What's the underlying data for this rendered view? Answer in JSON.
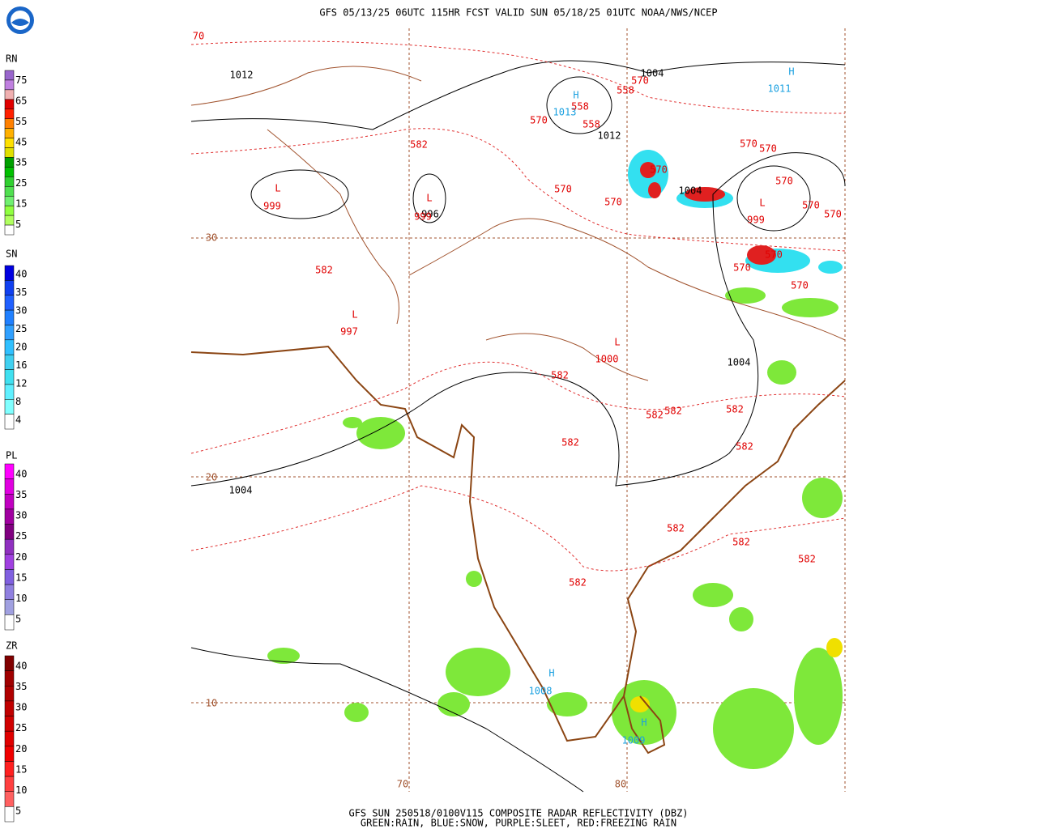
{
  "header": {
    "title": "GFS 05/13/25 06UTC 115HR FCST VALID SUN 05/18/25 01UTC NOAA/NWS/NCEP"
  },
  "footer": {
    "line1": "GFS SUN 250518/0100V115 COMPOSITE RADAR REFLECTIVITY (DBZ)",
    "line2": "GREEN:RAIN, BLUE:SNOW, PURPLE:SLEET, RED:FREEZING RAIN"
  },
  "legend": [
    {
      "title": "RN",
      "levels": [
        "75",
        "65",
        "55",
        "45",
        "35",
        "25",
        "15",
        "5"
      ],
      "colors": [
        "#9966cc",
        "#c080e0",
        "#f0b0b0",
        "#e00000",
        "#ff2000",
        "#ff8000",
        "#ffb000",
        "#ffe000",
        "#e0e000",
        "#00a000",
        "#00c000",
        "#30d030",
        "#50e050",
        "#70f070",
        "#90ff40",
        "#b0ff60",
        "#ffffff"
      ]
    },
    {
      "title": "SN",
      "levels": [
        "40",
        "35",
        "30",
        "25",
        "20",
        "16",
        "12",
        "8",
        "4"
      ],
      "colors": [
        "#0000e0",
        "#1040f0",
        "#2060ff",
        "#2080ff",
        "#30a0ff",
        "#30c0ff",
        "#40d0f0",
        "#40e0f0",
        "#60f0ff",
        "#80ffff",
        "#ffffff"
      ]
    },
    {
      "title": "PL",
      "levels": [
        "40",
        "35",
        "30",
        "25",
        "20",
        "15",
        "10",
        "5"
      ],
      "colors": [
        "#ff00ff",
        "#e000e0",
        "#c000c0",
        "#a000a0",
        "#800080",
        "#9030c0",
        "#a040e0",
        "#8060e0",
        "#9080e0",
        "#a0a0e0",
        "#ffffff"
      ]
    },
    {
      "title": "ZR",
      "levels": [
        "40",
        "35",
        "30",
        "25",
        "20",
        "15",
        "10",
        "5"
      ],
      "colors": [
        "#800000",
        "#a00000",
        "#b00000",
        "#c00000",
        "#d00000",
        "#e00000",
        "#f00000",
        "#ff2020",
        "#ff4040",
        "#ff6060",
        "#ffffff"
      ]
    }
  ],
  "map": {
    "pressure_black": [
      "1012",
      "1004",
      "1012",
      "1004",
      "996",
      "1004",
      "1004"
    ],
    "pressure_red": [
      "999",
      "999",
      "997",
      "1000",
      "999"
    ],
    "pressure_blue": [
      "1011",
      "1013",
      "1008",
      "1009"
    ],
    "low_symbol": "L",
    "high_symbol": "H",
    "heights": [
      "70",
      "558",
      "570",
      "558",
      "570",
      "558",
      "582",
      "570",
      "570",
      "570",
      "570",
      "570",
      "570",
      "570",
      "570",
      "570",
      "570",
      "570",
      "582",
      "582",
      "582",
      "582",
      "582",
      "582",
      "582",
      "582",
      "582",
      "582",
      "582"
    ],
    "grid_labels": [
      "30",
      "20",
      "10",
      "70",
      "80"
    ]
  }
}
